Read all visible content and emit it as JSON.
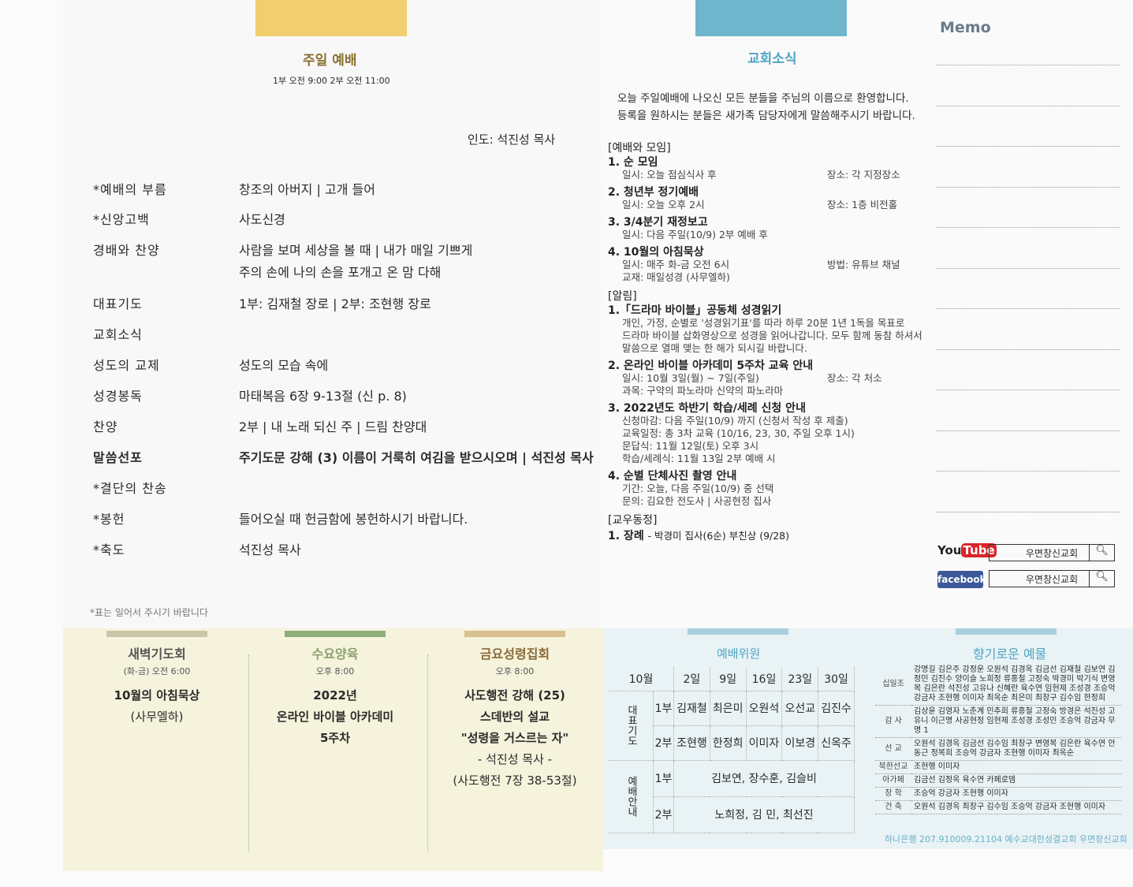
{
  "worship": {
    "title": "주일 예배",
    "times": "1부 오전 9:00  2부 오전 11:00",
    "leader": "인도: 석진성 목사",
    "order": [
      {
        "label": "*예배의 부름",
        "content": "창조의 아버지 | 고개 들어"
      },
      {
        "label": "*신앙고백",
        "content": "사도신경"
      },
      {
        "label": " 경배와 찬양",
        "content": "사람을 보며 세상을 볼 때 | 내가 매일 기쁘게",
        "content2": "주의 손에 나의 손을 포개고  온 맘 다해"
      },
      {
        "label": " 대표기도",
        "content": "1부: 김재철 장로 | 2부: 조현행 장로"
      },
      {
        "label": " 교회소식",
        "content": ""
      },
      {
        "label": " 성도의 교제",
        "content": "성도의 모습 속에"
      },
      {
        "label": " 성경봉독",
        "content": "마태복음 6장 9-13절 (신 p. 8)"
      },
      {
        "label": " 찬양",
        "content": "2부 | 내 노래 되신 주 | 드림 찬양대"
      },
      {
        "label": " 말씀선포",
        "content": "주기도문 강해 (3) 이름이 거룩히 여김을 받으시오며 | 석진성 목사",
        "bold": true
      },
      {
        "label": "*결단의 찬송",
        "content": ""
      },
      {
        "label": "*봉헌",
        "content": "들어오실 때 헌금함에 봉헌하시기 바랍니다."
      },
      {
        "label": "*축도",
        "content": "석진성 목사"
      }
    ],
    "note": "*표는 일어서 주시기 바랍니다"
  },
  "news": {
    "title": "교회소식",
    "welcome1": "오늘 주일예배에 나오신 모든 분들을 주님의 이름으로 환영합니다.",
    "welcome2": "등록을 원하시는 분들은 새가족 담당자에게 말씀해주시기 바랍니다.",
    "sec1": "[예배와 모임]",
    "m1": "1. 순 모임",
    "m1a": "일시: 오늘 점심식사 후",
    "m1b": "장소: 각 지정장소",
    "m2": "2. 청년부 정기예배",
    "m2a": "일시: 오늘 오후 2시",
    "m2b": "장소: 1층 비전홀",
    "m3": "3. 3/4분기 재정보고",
    "m3a": "일시: 다음 주일(10/9) 2부 예배 후",
    "m4": "4. 10월의 아침묵상",
    "m4a": "일시: 매주 화-금 오전 6시",
    "m4b": "방법: 유튜브 채널",
    "m4c": "교재: 매일성경 (사무엘하)",
    "sec2": "[알림]",
    "a1": "1.「드라마 바이블」공동체 성경읽기",
    "a1a": "개인, 가정, 순별로 '성경읽기표'를 따라 하루 20분 1년 1독을 목표로",
    "a1b": "드라마 바이블 삽화영상으로 성경을 읽어나갑니다. 모두 함께 동참 하셔서",
    "a1c": "말씀으로 열매 맺는 한 해가 되시길 바랍니다.",
    "a2": "2. 온라인 바이블 아카데미 5주차 교육 안내",
    "a2a": "일시: 10월 3일(월) ~ 7일(주일)",
    "a2b": "장소: 각 처소",
    "a2c": "과목: 구약의 파노라마  신약의 파노라마",
    "a3": "3. 2022년도 하반기 학습/세례 신청 안내",
    "a3a": "신청마감: 다음 주일(10/9) 까지 (신청서 작성 후 제출)",
    "a3b": "교육일정: 총 3차 교육 (10/16, 23, 30, 주일 오후 1시)",
    "a3c": "문답식: 11월 12일(토) 오후 3시",
    "a3d": "학습/세례식: 11월 13일 2부 예배 시",
    "a4": "4. 순별 단체사진 촬영 안내",
    "a4a": "기간: 오늘, 다음 주일(10/9) 중 선택",
    "a4b": "문의: 김요한 전도사 | 사공현정 집사",
    "sec3": "[교우동정]",
    "f1": "1. 장례",
    "f1a": "- 박경미 집사(6순) 부친상 (9/28)"
  },
  "memo": {
    "title": "Memo",
    "youtube": "YouTube",
    "facebook": "facebook",
    "search1": "우면창신교회",
    "search2": "우면창신교회"
  },
  "bottom": {
    "dawn": {
      "title": "새벽기도회",
      "time": "(화-금) 오전 6:00",
      "l1": "10월의 아침묵상",
      "l2": "(사무엘하)"
    },
    "wed": {
      "title": "수요양육",
      "time": "오후 8:00",
      "l1": "2022년",
      "l2": "온라인 바이블 아카데미",
      "l3": "5주차"
    },
    "fri": {
      "title": "금요성령집회",
      "time": "오후 8:00",
      "l1": "사도행전 강해 (25)",
      "l2": "스데반의 설교",
      "l3": "\"성령을 거스르는 자\"",
      "l4": "- 석진성 목사 -",
      "l5": "(사도행전 7장 38-53절)"
    },
    "committee": {
      "title": "예배위원",
      "header": [
        "10월",
        "2일",
        "9일",
        "16일",
        "23일",
        "30일"
      ],
      "prayer_label": "대표기도",
      "usher_label": "예배안내",
      "p1": [
        "1부",
        "김재철",
        "최은미",
        "오원석",
        "오선교",
        "김진수"
      ],
      "p2": [
        "2부",
        "조현행",
        "한정희",
        "이미자",
        "이보경",
        "신옥주"
      ],
      "u1": [
        "1부",
        "김보연, 장수훈, 김슬비"
      ],
      "u2": [
        "2부",
        "노희정, 김  민, 최선진"
      ]
    },
    "offering": {
      "title": "향기로운 예물",
      "rows": [
        {
          "k": "십일조",
          "v": "강명길 김은주 강정운 오원석 김경옥 김금선 김재철 김보연 김정민 김진수 양이슬 노희정 류흥철 고정숙 박경미 박기식 변영복 김은란 석진성 고유나 신혜란 육수연 임현제 조성경 조승억 강금자 조현행 이미자 최옥순 최은미 최창구 김수임 한정희"
        },
        {
          "k": "감 사",
          "v": "김상윤 김영자 노춘계 민추희 류흥철 고정숙 방경은 석진성 고유니 이근명 사공현정 임현제 조성경 조성민 조승억 강금자 무명 1"
        },
        {
          "k": "선 교",
          "v": "오원석 김경옥 김금선 김수임 최창구 변영복 김은란 육수연 안동근 정복희 조승억 강금자 조현행 이미자 최옥순"
        },
        {
          "k": "북한선교",
          "v": "조현행 이미자"
        },
        {
          "k": "아가페",
          "v": "김금선 김정옥 육수연 카페로뎀"
        },
        {
          "k": "장 학",
          "v": "조승억 강금자 조현행 이미자"
        },
        {
          "k": "건 축",
          "v": "오원석 김경옥 최창구 김수임 조승억 강금자 조현행 이미자"
        }
      ],
      "account": "하나은행 207.910009.21104 예수교대한성결교회 우면창신교회"
    }
  },
  "colors": {
    "yellow_tab": "#f1cf6e",
    "blue_tab": "#6fb6cc",
    "title_blue": "#4fa5c4",
    "title_brown": "#8a7030"
  }
}
